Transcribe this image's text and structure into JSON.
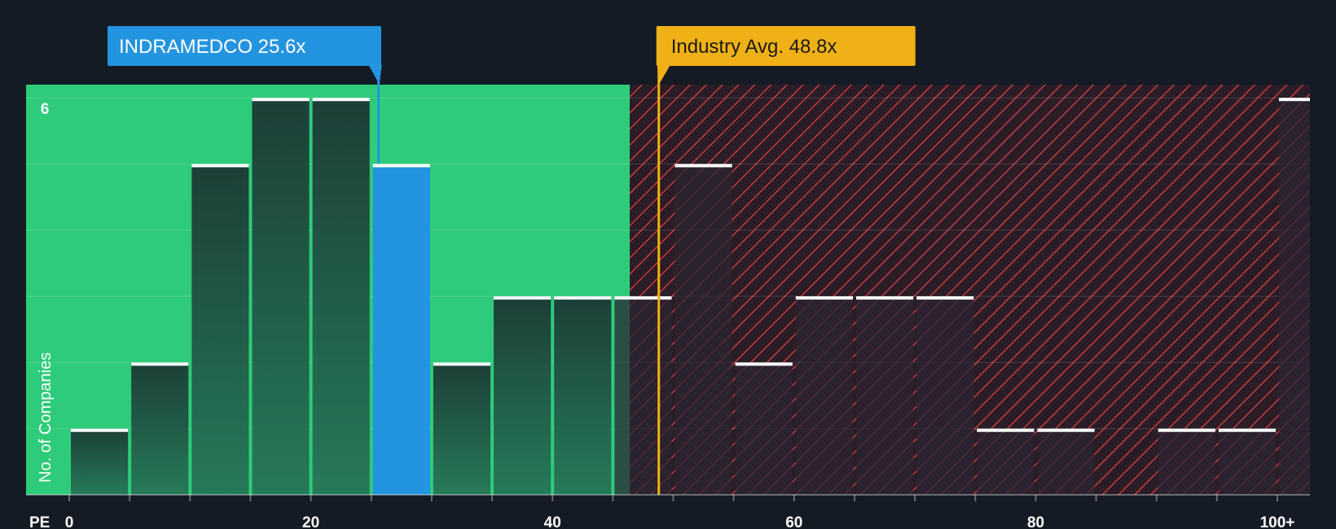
{
  "chart_data": {
    "type": "bar",
    "xlabel": "PE",
    "ylabel": "No. of Companies",
    "xlim": [
      0,
      100
    ],
    "ylim": [
      0,
      6
    ],
    "bin_width": 5,
    "x_ticks": [
      0,
      20,
      40,
      60,
      80,
      100
    ],
    "x_tick_labels": [
      "0",
      "20",
      "40",
      "60",
      "80",
      "100+"
    ],
    "y_tick_labels": [
      {
        "value": 6,
        "label": "6"
      }
    ],
    "bins": [
      {
        "start": 0,
        "count": 1
      },
      {
        "start": 5,
        "count": 2
      },
      {
        "start": 10,
        "count": 5
      },
      {
        "start": 15,
        "count": 6
      },
      {
        "start": 20,
        "count": 6
      },
      {
        "start": 25,
        "count": 5,
        "highlight": true
      },
      {
        "start": 30,
        "count": 2
      },
      {
        "start": 35,
        "count": 3
      },
      {
        "start": 40,
        "count": 3
      },
      {
        "start": 45,
        "count": 3
      },
      {
        "start": 50,
        "count": 5
      },
      {
        "start": 55,
        "count": 2
      },
      {
        "start": 60,
        "count": 3
      },
      {
        "start": 65,
        "count": 3
      },
      {
        "start": 70,
        "count": 3
      },
      {
        "start": 75,
        "count": 1
      },
      {
        "start": 80,
        "count": 1
      },
      {
        "start": 85,
        "count": 0
      },
      {
        "start": 90,
        "count": 1
      },
      {
        "start": 95,
        "count": 1
      },
      {
        "start": 100,
        "count": 6
      }
    ],
    "company": {
      "label": "INDRAMEDCO 25.6x",
      "value": 25.6
    },
    "industry_avg": {
      "label": "Industry Avg. 48.8x",
      "value": 48.8
    },
    "fair_zone_end": 46.4
  },
  "colors": {
    "background": "#151b24",
    "green_zone": "#2ecb7a",
    "red_zone_bg": "#2a1d26",
    "red_hatch": "#c9383f",
    "bar_dark": "#1e4d3d",
    "bar_red_region": "#2b2433",
    "highlight_bar": "#2394e0",
    "company_callout": "#2394e0",
    "industry_callout": "#f0b116",
    "industry_text": "#1a1a1a",
    "bar_top": "#ffffff"
  }
}
